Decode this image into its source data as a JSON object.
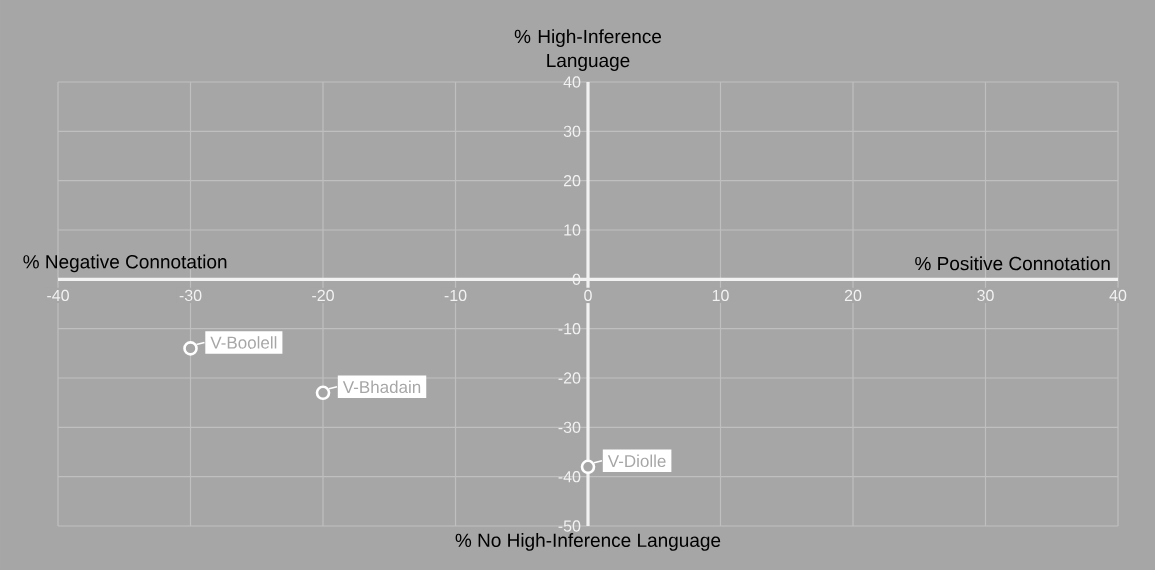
{
  "chart_data": {
    "type": "scatter",
    "xlabel": "% Positive Connotation",
    "ylabel": "% High-Inference Language",
    "x": [
      -30,
      -20,
      0
    ],
    "values": [
      -14,
      -23,
      -38
    ],
    "color": "#ffffff",
    "marker": "circle",
    "xlim": [
      -40,
      40
    ],
    "ylim": [
      -50,
      40
    ],
    "xticks": [
      -40,
      -30,
      -20,
      -10,
      0,
      10,
      20,
      30,
      40
    ],
    "yticks": [
      -50,
      -40,
      -30,
      -20,
      -10,
      0,
      10,
      20,
      30,
      40
    ],
    "grid": true,
    "annotations": [
      "% Negative Connotation",
      "% No High-Inference Language",
      {
        "text": "V-Boolell",
        "x": -30,
        "y": -14
      },
      {
        "text": "V-Bhadain",
        "x": -20,
        "y": -23
      },
      {
        "text": "V-Diolle",
        "x": 0,
        "y": -38
      }
    ]
  }
}
